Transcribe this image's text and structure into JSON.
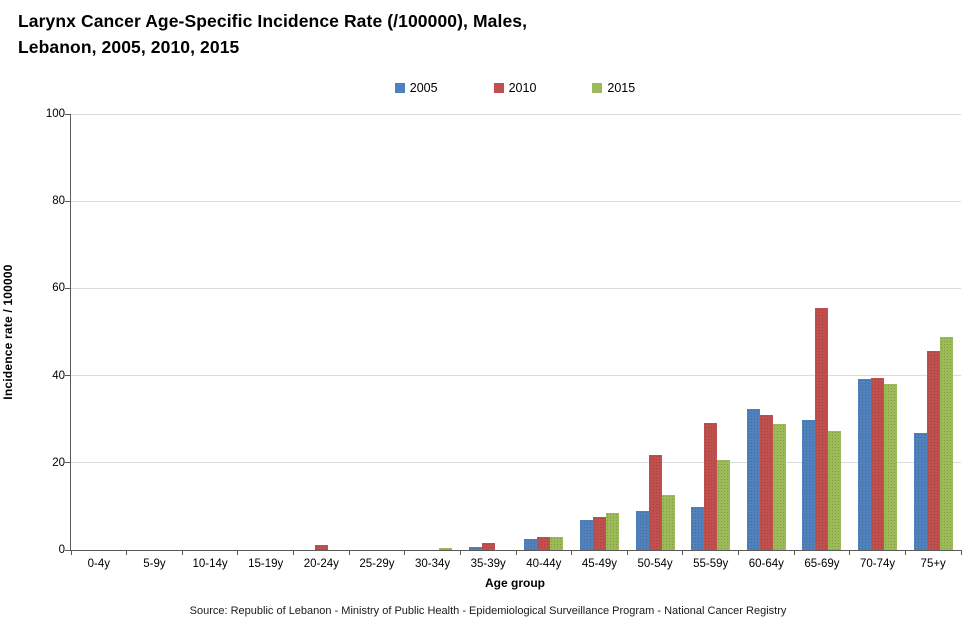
{
  "title": {
    "line1": "Larynx Cancer Age-Specific Incidence Rate (/100000), Males,",
    "line2": "Lebanon, 2005, 2010, 2015"
  },
  "footer": {
    "source": "Source: Republic of Lebanon - Ministry of Public Health - Epidemiological Surveillance Program - National Cancer Registry"
  },
  "colors": {
    "series_2005": "#4f81bd",
    "series_2010": "#c0504d",
    "series_2015": "#9bbb59",
    "gridline": "#d6dce1",
    "axis": "#595959"
  },
  "chart_data": {
    "type": "bar",
    "title": "Larynx Cancer Age-Specific Incidence Rate (/100000), Males, Lebanon, 2005, 2010, 2015",
    "xlabel": "Age group",
    "ylabel": "Incidence rate / 100000",
    "ylim": [
      0,
      100
    ],
    "yticks": [
      0,
      20,
      40,
      60,
      80,
      100
    ],
    "grid": true,
    "legend_position": "top-center",
    "categories": [
      "0-4y",
      "5-9y",
      "10-14y",
      "15-19y",
      "20-24y",
      "25-29y",
      "30-34y",
      "35-39y",
      "40-44y",
      "45-49y",
      "50-54y",
      "55-59y",
      "60-64y",
      "65-69y",
      "70-74y",
      "75+y"
    ],
    "series": [
      {
        "name": "2005",
        "color": "#4f81bd",
        "values": [
          0,
          0,
          0,
          0,
          0,
          0,
          0,
          0.8,
          2.5,
          6.9,
          8.9,
          9.9,
          32.4,
          29.8,
          39.2,
          26.8
        ]
      },
      {
        "name": "2010",
        "color": "#c0504d",
        "values": [
          0,
          0,
          0,
          0,
          1.1,
          0,
          0,
          1.5,
          3,
          7.6,
          21.9,
          29.2,
          31,
          55.6,
          39.4,
          45.6
        ]
      },
      {
        "name": "2015",
        "color": "#9bbb59",
        "values": [
          0,
          0,
          0,
          0,
          0,
          0,
          0.5,
          0,
          2.9,
          8.6,
          12.6,
          20.6,
          28.8,
          27.4,
          38.1,
          48.8
        ]
      }
    ]
  }
}
